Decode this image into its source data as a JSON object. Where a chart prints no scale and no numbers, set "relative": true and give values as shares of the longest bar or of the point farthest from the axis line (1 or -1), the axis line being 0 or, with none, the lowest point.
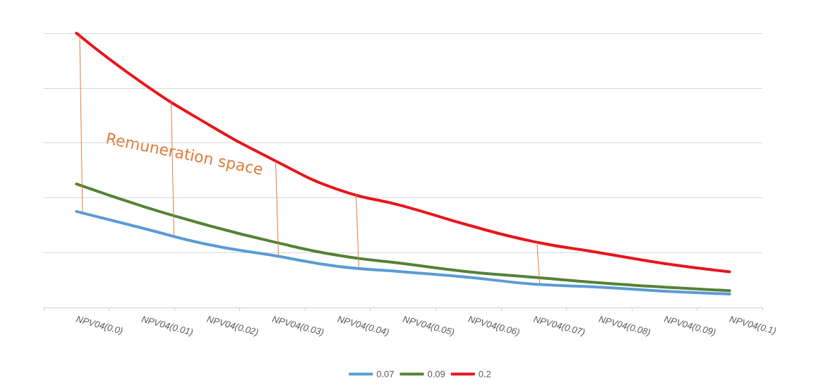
{
  "chart_data": {
    "type": "line",
    "relative": true,
    "categories": [
      "NPV04(0.0)",
      "NPV04(0.01)",
      "NPV04(0.02)",
      "NPV04(0.03)",
      "NPV04(0.04)",
      "NPV04(0.05)",
      "NPV04(0.06)",
      "NPV04(0.07)",
      "NPV04(0.08)",
      "NPV04(0.09)",
      "NPV04(0.1)"
    ],
    "series": [
      {
        "name": "0.07",
        "color": "#5b9bd5",
        "values": [
          0.35,
          0.29,
          0.23,
          0.19,
          0.15,
          0.13,
          0.11,
          0.085,
          0.074,
          0.059,
          0.049
        ]
      },
      {
        "name": "0.09",
        "color": "#548235",
        "values": [
          0.45,
          0.37,
          0.3,
          0.24,
          0.19,
          0.16,
          0.13,
          0.11,
          0.09,
          0.074,
          0.061
        ]
      },
      {
        "name": "0.2",
        "color": "#e8141c",
        "values": [
          1,
          0.82,
          0.67,
          0.54,
          0.43,
          0.37,
          0.3,
          0.24,
          0.2,
          0.16,
          0.13
        ]
      }
    ],
    "annotations": [
      "Remuneration space"
    ],
    "grid": "y",
    "legend": "bottom",
    "marker": "none",
    "line_style": "solid"
  }
}
